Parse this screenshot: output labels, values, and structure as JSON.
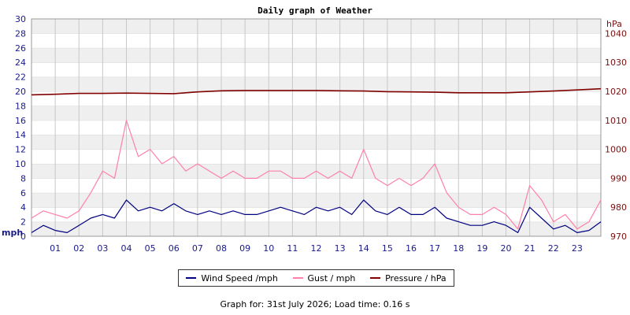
{
  "chart_data": {
    "type": "line",
    "title": "Daily graph of Weather",
    "left_axis": {
      "unit_label": "mph",
      "ylim": [
        0,
        30
      ],
      "ticks": [
        0,
        2,
        4,
        6,
        8,
        10,
        12,
        14,
        16,
        18,
        20,
        22,
        24,
        26,
        28,
        30
      ]
    },
    "right_axis": {
      "unit_label": "hPa",
      "ylim": [
        970,
        1045
      ],
      "ticks": [
        970,
        980,
        990,
        1000,
        1010,
        1020,
        1030,
        1040
      ]
    },
    "x_axis": {
      "xlim": [
        0,
        24
      ],
      "tick_labels": [
        "01",
        "02",
        "03",
        "04",
        "05",
        "06",
        "07",
        "08",
        "09",
        "10",
        "11",
        "12",
        "13",
        "14",
        "15",
        "16",
        "17",
        "18",
        "19",
        "20",
        "21",
        "22",
        "23"
      ]
    },
    "grid": true,
    "legend_position": "bottom",
    "series": [
      {
        "name": "Wind Speed /mph",
        "color": "#000080",
        "axis": "left",
        "x": [
          0,
          0.5,
          1,
          1.5,
          2,
          2.5,
          3,
          3.5,
          4,
          4.5,
          5,
          5.5,
          6,
          6.5,
          7,
          7.5,
          8,
          8.5,
          9,
          9.5,
          10,
          10.5,
          11,
          11.5,
          12,
          12.5,
          13,
          13.5,
          14,
          14.5,
          15,
          15.5,
          16,
          16.5,
          17,
          17.5,
          18,
          18.5,
          19,
          19.5,
          20,
          20.5,
          21,
          21.5,
          22,
          22.5,
          23,
          23.5,
          24
        ],
        "values": [
          0.5,
          1.5,
          0.8,
          0.5,
          1.5,
          2.5,
          3,
          2.5,
          5,
          3.5,
          4,
          3.5,
          4.5,
          3.5,
          3,
          3.5,
          3,
          3.5,
          3,
          3,
          3.5,
          4,
          3.5,
          3,
          4,
          3.5,
          4,
          3,
          5,
          3.5,
          3,
          4,
          3,
          3,
          4,
          2.5,
          2,
          1.5,
          1.5,
          2,
          1.5,
          0.5,
          4,
          2.5,
          1,
          1.5,
          0.5,
          0.8,
          2
        ]
      },
      {
        "name": "Gust / mph",
        "color": "#ff80a8",
        "axis": "left",
        "x": [
          0,
          0.5,
          1,
          1.5,
          2,
          2.5,
          3,
          3.5,
          4,
          4.5,
          5,
          5.5,
          6,
          6.5,
          7,
          7.5,
          8,
          8.5,
          9,
          9.5,
          10,
          10.5,
          11,
          11.5,
          12,
          12.5,
          13,
          13.5,
          14,
          14.5,
          15,
          15.5,
          16,
          16.5,
          17,
          17.5,
          18,
          18.5,
          19,
          19.5,
          20,
          20.5,
          21,
          21.5,
          22,
          22.5,
          23,
          23.5,
          24
        ],
        "values": [
          2.5,
          3.5,
          3,
          2.5,
          3.5,
          6,
          9,
          8,
          16,
          11,
          12,
          10,
          11,
          9,
          10,
          9,
          8,
          9,
          8,
          8,
          9,
          9,
          8,
          8,
          9,
          8,
          9,
          8,
          12,
          8,
          7,
          8,
          7,
          8,
          10,
          6,
          4,
          3,
          3,
          4,
          3,
          1,
          7,
          5,
          2,
          3,
          1,
          2,
          5
        ]
      },
      {
        "name": "Pressure / hPa",
        "color": "#800000",
        "axis": "right",
        "x": [
          0,
          1,
          2,
          3,
          4,
          5,
          6,
          7,
          8,
          9,
          10,
          11,
          12,
          13,
          14,
          15,
          16,
          17,
          18,
          19,
          20,
          21,
          22,
          23,
          24
        ],
        "values": [
          1018.8,
          1019,
          1019.3,
          1019.3,
          1019.4,
          1019.3,
          1019.2,
          1019.8,
          1020.2,
          1020.3,
          1020.3,
          1020.3,
          1020.3,
          1020.2,
          1020.1,
          1019.9,
          1019.8,
          1019.7,
          1019.5,
          1019.5,
          1019.5,
          1019.8,
          1020.1,
          1020.5,
          1020.9
        ]
      }
    ]
  },
  "footer": {
    "text": "Graph for: 31st July 2026; Load time: 0.16 s"
  }
}
